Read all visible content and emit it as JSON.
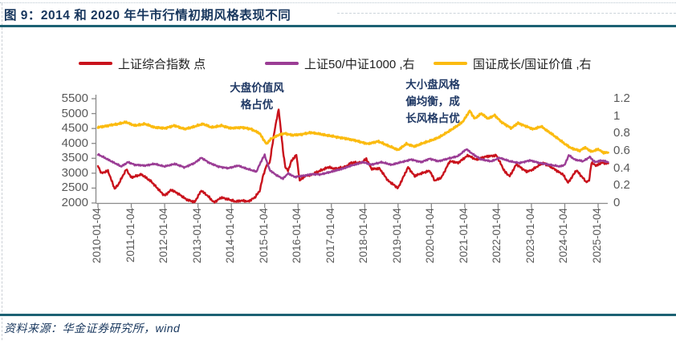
{
  "figure": {
    "title": "图 9：2014 和 2020 年牛市行情初期风格表现不同",
    "source": "资料来源：华金证券研究所，wind"
  },
  "annotations": [
    {
      "lines": [
        "大盘价值风",
        "格占优"
      ]
    },
    {
      "lines": [
        "大小盘风格",
        "偏均衡，成",
        "长风格占优"
      ]
    }
  ],
  "chart_data": {
    "type": "line",
    "legend_position": "top",
    "grid": false,
    "x_axis": {
      "tick_labels": [
        "2010-01-04",
        "2011-01-04",
        "2012-01-04",
        "2013-01-04",
        "2014-01-04",
        "2015-01-04",
        "2016-01-04",
        "2017-01-04",
        "2018-01-04",
        "2019-01-04",
        "2020-01-04",
        "2021-01-04",
        "2022-01-04",
        "2023-01-04",
        "2024-01-04",
        "2025-01-04"
      ]
    },
    "left_axis": {
      "range": [
        2000,
        5500
      ],
      "tick_labels": [
        "5500",
        "5000",
        "4500",
        "4000",
        "3500",
        "3000",
        "2500",
        "2000"
      ]
    },
    "right_axis": {
      "range": [
        0,
        1.2
      ],
      "tick_labels": [
        "1.2",
        "1",
        "0.8",
        "0.6",
        "0.4",
        "0.2",
        "0"
      ]
    },
    "series": [
      {
        "id": "sse-composite",
        "name": "上证综合指数 点",
        "axis": "left",
        "color": "#C9121C",
        "points": [
          [
            2010.0,
            3250
          ],
          [
            2010.1,
            3000
          ],
          [
            2010.3,
            3080
          ],
          [
            2010.5,
            2480
          ],
          [
            2010.6,
            2600
          ],
          [
            2010.85,
            3130
          ],
          [
            2011.0,
            2850
          ],
          [
            2011.3,
            2960
          ],
          [
            2011.6,
            2720
          ],
          [
            2011.9,
            2350
          ],
          [
            2012.0,
            2250
          ],
          [
            2012.2,
            2440
          ],
          [
            2012.4,
            2320
          ],
          [
            2012.65,
            2120
          ],
          [
            2012.9,
            2030
          ],
          [
            2013.1,
            2420
          ],
          [
            2013.3,
            2230
          ],
          [
            2013.48,
            2020
          ],
          [
            2013.7,
            2180
          ],
          [
            2013.9,
            2130
          ],
          [
            2014.1,
            2050
          ],
          [
            2014.3,
            2080
          ],
          [
            2014.5,
            2050
          ],
          [
            2014.7,
            2180
          ],
          [
            2014.85,
            2400
          ],
          [
            2014.95,
            2900
          ],
          [
            2015.05,
            3250
          ],
          [
            2015.15,
            3350
          ],
          [
            2015.3,
            4450
          ],
          [
            2015.42,
            5150
          ],
          [
            2015.5,
            4300
          ],
          [
            2015.55,
            3750
          ],
          [
            2015.62,
            3200
          ],
          [
            2015.7,
            3080
          ],
          [
            2015.8,
            3400
          ],
          [
            2015.95,
            3620
          ],
          [
            2016.05,
            2750
          ],
          [
            2016.2,
            2900
          ],
          [
            2016.4,
            2950
          ],
          [
            2016.6,
            3050
          ],
          [
            2016.9,
            3200
          ],
          [
            2017.1,
            3150
          ],
          [
            2017.4,
            3200
          ],
          [
            2017.6,
            3350
          ],
          [
            2017.9,
            3350
          ],
          [
            2018.05,
            3480
          ],
          [
            2018.2,
            3150
          ],
          [
            2018.45,
            3150
          ],
          [
            2018.7,
            2750
          ],
          [
            2019.0,
            2500
          ],
          [
            2019.3,
            3200
          ],
          [
            2019.5,
            2900
          ],
          [
            2019.7,
            3000
          ],
          [
            2019.95,
            3080
          ],
          [
            2020.1,
            2750
          ],
          [
            2020.3,
            2850
          ],
          [
            2020.55,
            3400
          ],
          [
            2020.8,
            3350
          ],
          [
            2021.1,
            3600
          ],
          [
            2021.35,
            3450
          ],
          [
            2021.6,
            3550
          ],
          [
            2021.95,
            3600
          ],
          [
            2022.2,
            3050
          ],
          [
            2022.35,
            2900
          ],
          [
            2022.55,
            3300
          ],
          [
            2022.85,
            3050
          ],
          [
            2023.0,
            3100
          ],
          [
            2023.35,
            3350
          ],
          [
            2023.6,
            3200
          ],
          [
            2023.95,
            2950
          ],
          [
            2024.1,
            2680
          ],
          [
            2024.35,
            3100
          ],
          [
            2024.65,
            2700
          ],
          [
            2024.73,
            2750
          ],
          [
            2024.8,
            3350
          ],
          [
            2024.95,
            3250
          ],
          [
            2025.1,
            3350
          ],
          [
            2025.3,
            3330
          ]
        ]
      },
      {
        "id": "sse50-csi1000",
        "name": "上证50/中证1000 ,右",
        "axis": "right",
        "color": "#9B3D95",
        "points": [
          [
            2010.0,
            0.56
          ],
          [
            2010.2,
            0.52
          ],
          [
            2010.5,
            0.46
          ],
          [
            2010.7,
            0.42
          ],
          [
            2010.9,
            0.47
          ],
          [
            2011.1,
            0.44
          ],
          [
            2011.4,
            0.43
          ],
          [
            2011.7,
            0.45
          ],
          [
            2012.0,
            0.42
          ],
          [
            2012.3,
            0.45
          ],
          [
            2012.6,
            0.41
          ],
          [
            2012.9,
            0.46
          ],
          [
            2013.1,
            0.52
          ],
          [
            2013.35,
            0.46
          ],
          [
            2013.6,
            0.42
          ],
          [
            2013.9,
            0.4
          ],
          [
            2014.2,
            0.43
          ],
          [
            2014.5,
            0.39
          ],
          [
            2014.75,
            0.36
          ],
          [
            2014.92,
            0.5
          ],
          [
            2015.0,
            0.55
          ],
          [
            2015.15,
            0.38
          ],
          [
            2015.35,
            0.32
          ],
          [
            2015.55,
            0.28
          ],
          [
            2015.7,
            0.34
          ],
          [
            2015.9,
            0.3
          ],
          [
            2016.1,
            0.31
          ],
          [
            2016.4,
            0.33
          ],
          [
            2016.7,
            0.33
          ],
          [
            2017.0,
            0.36
          ],
          [
            2017.3,
            0.39
          ],
          [
            2017.6,
            0.43
          ],
          [
            2017.95,
            0.47
          ],
          [
            2018.2,
            0.44
          ],
          [
            2018.5,
            0.47
          ],
          [
            2018.8,
            0.44
          ],
          [
            2019.1,
            0.47
          ],
          [
            2019.4,
            0.5
          ],
          [
            2019.7,
            0.47
          ],
          [
            2019.95,
            0.51
          ],
          [
            2020.2,
            0.48
          ],
          [
            2020.5,
            0.51
          ],
          [
            2020.8,
            0.54
          ],
          [
            2021.05,
            0.62
          ],
          [
            2021.25,
            0.56
          ],
          [
            2021.5,
            0.5
          ],
          [
            2021.8,
            0.48
          ],
          [
            2022.05,
            0.52
          ],
          [
            2022.35,
            0.48
          ],
          [
            2022.65,
            0.46
          ],
          [
            2022.95,
            0.49
          ],
          [
            2023.25,
            0.46
          ],
          [
            2023.55,
            0.44
          ],
          [
            2023.85,
            0.42
          ],
          [
            2024.0,
            0.44
          ],
          [
            2024.12,
            0.55
          ],
          [
            2024.3,
            0.5
          ],
          [
            2024.55,
            0.48
          ],
          [
            2024.75,
            0.53
          ],
          [
            2024.9,
            0.47
          ],
          [
            2025.1,
            0.49
          ],
          [
            2025.3,
            0.47
          ]
        ]
      },
      {
        "id": "cni-growth-value",
        "name": "国证成长/国证价值 ,右",
        "axis": "right",
        "color": "#FBBB10",
        "points": [
          [
            2010.0,
            0.87
          ],
          [
            2010.3,
            0.89
          ],
          [
            2010.6,
            0.91
          ],
          [
            2010.85,
            0.93
          ],
          [
            2011.1,
            0.89
          ],
          [
            2011.4,
            0.91
          ],
          [
            2011.7,
            0.87
          ],
          [
            2012.0,
            0.86
          ],
          [
            2012.3,
            0.89
          ],
          [
            2012.6,
            0.85
          ],
          [
            2012.9,
            0.88
          ],
          [
            2013.15,
            0.91
          ],
          [
            2013.4,
            0.87
          ],
          [
            2013.7,
            0.89
          ],
          [
            2014.0,
            0.86
          ],
          [
            2014.3,
            0.87
          ],
          [
            2014.6,
            0.85
          ],
          [
            2014.85,
            0.8
          ],
          [
            2015.05,
            0.68
          ],
          [
            2015.2,
            0.74
          ],
          [
            2015.4,
            0.78
          ],
          [
            2015.6,
            0.8
          ],
          [
            2015.85,
            0.78
          ],
          [
            2016.1,
            0.79
          ],
          [
            2016.4,
            0.81
          ],
          [
            2016.7,
            0.79
          ],
          [
            2017.0,
            0.77
          ],
          [
            2017.3,
            0.75
          ],
          [
            2017.6,
            0.73
          ],
          [
            2017.9,
            0.7
          ],
          [
            2018.1,
            0.68
          ],
          [
            2018.4,
            0.71
          ],
          [
            2018.7,
            0.66
          ],
          [
            2019.0,
            0.61
          ],
          [
            2019.25,
            0.68
          ],
          [
            2019.5,
            0.65
          ],
          [
            2019.75,
            0.69
          ],
          [
            2020.0,
            0.72
          ],
          [
            2020.25,
            0.76
          ],
          [
            2020.5,
            0.82
          ],
          [
            2020.75,
            0.88
          ],
          [
            2020.95,
            0.94
          ],
          [
            2021.15,
            1.06
          ],
          [
            2021.3,
            0.97
          ],
          [
            2021.5,
            1.03
          ],
          [
            2021.7,
            0.97
          ],
          [
            2021.9,
            1.01
          ],
          [
            2022.1,
            0.93
          ],
          [
            2022.4,
            0.86
          ],
          [
            2022.6,
            0.92
          ],
          [
            2022.85,
            0.88
          ],
          [
            2023.05,
            0.85
          ],
          [
            2023.3,
            0.88
          ],
          [
            2023.55,
            0.81
          ],
          [
            2023.8,
            0.74
          ],
          [
            2024.0,
            0.68
          ],
          [
            2024.2,
            0.63
          ],
          [
            2024.45,
            0.6
          ],
          [
            2024.6,
            0.64
          ],
          [
            2024.8,
            0.59
          ],
          [
            2025.0,
            0.62
          ],
          [
            2025.15,
            0.58
          ],
          [
            2025.3,
            0.58
          ]
        ]
      }
    ]
  }
}
